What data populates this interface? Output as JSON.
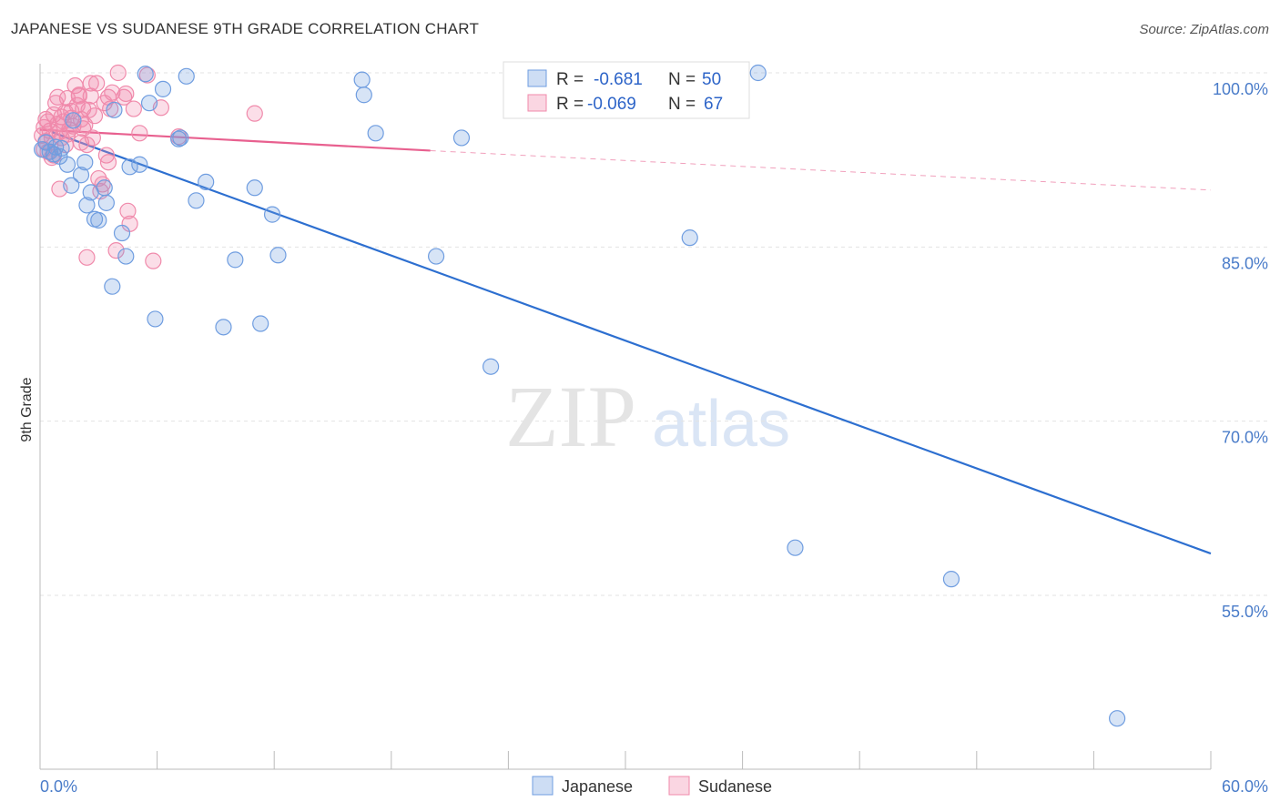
{
  "title": "JAPANESE VS SUDANESE 9TH GRADE CORRELATION CHART",
  "source": "Source: ZipAtlas.com",
  "watermark": {
    "zip": "ZIP",
    "atlas": "atlas"
  },
  "colors": {
    "japanese": "#6f9de0",
    "japanese_fill": "rgba(111,157,224,0.28)",
    "japanese_line": "#2d6fd0",
    "sudanese": "#f08aab",
    "sudanese_fill": "rgba(240,138,171,0.28)",
    "sudanese_line": "#e8608f",
    "grid": "#e3e3e3",
    "tick_label": "#4a7cc9"
  },
  "stats_legend": [
    {
      "series": "Japanese",
      "r_label": "R =",
      "r_value": "-0.681",
      "n_label": "N =",
      "n_value": "50"
    },
    {
      "series": "Sudanese",
      "r_label": "R =",
      "r_value": "-0.069",
      "n_label": "N =",
      "n_value": "67"
    }
  ],
  "chart_data": {
    "type": "scatter",
    "title": "JAPANESE VS SUDANESE 9TH GRADE CORRELATION CHART",
    "xlabel": "",
    "ylabel": "9th Grade",
    "xlim": [
      0,
      60
    ],
    "ylim": [
      41.5,
      101
    ],
    "x_tick_labels": [
      "0.0%",
      "60.0%"
    ],
    "y_ticks": [
      100,
      85,
      70,
      55
    ],
    "y_tick_labels": [
      "100.0%",
      "85.0%",
      "70.0%",
      "55.0%"
    ],
    "grid": true,
    "legend_position": "bottom-center",
    "series": [
      {
        "name": "Japanese",
        "points": [
          [
            0.1,
            93.4
          ],
          [
            0.3,
            94.0
          ],
          [
            0.5,
            93.2
          ],
          [
            0.7,
            93.0
          ],
          [
            0.8,
            93.6
          ],
          [
            1.0,
            92.8
          ],
          [
            1.1,
            93.5
          ],
          [
            1.4,
            92.1
          ],
          [
            1.6,
            90.3
          ],
          [
            1.7,
            95.9
          ],
          [
            2.1,
            91.2
          ],
          [
            2.3,
            92.3
          ],
          [
            2.4,
            88.6
          ],
          [
            2.6,
            89.7
          ],
          [
            2.8,
            87.4
          ],
          [
            3.0,
            87.3
          ],
          [
            3.3,
            90.1
          ],
          [
            3.4,
            88.8
          ],
          [
            3.7,
            81.6
          ],
          [
            3.8,
            96.8
          ],
          [
            4.2,
            86.2
          ],
          [
            4.4,
            84.2
          ],
          [
            4.6,
            91.9
          ],
          [
            5.1,
            92.1
          ],
          [
            5.4,
            99.9
          ],
          [
            5.6,
            97.4
          ],
          [
            5.9,
            78.8
          ],
          [
            6.3,
            98.6
          ],
          [
            7.1,
            94.3
          ],
          [
            7.2,
            94.4
          ],
          [
            7.5,
            99.7
          ],
          [
            8.0,
            89.0
          ],
          [
            8.5,
            90.6
          ],
          [
            9.4,
            78.1
          ],
          [
            10.0,
            83.9
          ],
          [
            11.0,
            90.1
          ],
          [
            11.3,
            78.4
          ],
          [
            11.9,
            87.8
          ],
          [
            12.2,
            84.3
          ],
          [
            16.5,
            99.4
          ],
          [
            16.6,
            98.1
          ],
          [
            17.2,
            94.8
          ],
          [
            20.3,
            84.2
          ],
          [
            21.6,
            94.4
          ],
          [
            23.1,
            74.7
          ],
          [
            33.3,
            85.8
          ],
          [
            36.8,
            100.0
          ],
          [
            38.7,
            59.1
          ],
          [
            46.7,
            56.4
          ],
          [
            55.2,
            44.4
          ]
        ],
        "trend": {
          "x": [
            0.6,
            60.0
          ],
          "y": [
            94.9,
            58.6
          ]
        }
      },
      {
        "name": "Sudanese",
        "points": [
          [
            0.1,
            94.6
          ],
          [
            0.2,
            95.3
          ],
          [
            0.3,
            96.0
          ],
          [
            0.3,
            94.1
          ],
          [
            0.4,
            93.2
          ],
          [
            0.5,
            95.0
          ],
          [
            0.6,
            94.4
          ],
          [
            0.7,
            96.4
          ],
          [
            0.7,
            92.9
          ],
          [
            0.8,
            97.4
          ],
          [
            0.9,
            95.6
          ],
          [
            1.0,
            94.9
          ],
          [
            1.0,
            90.0
          ],
          [
            1.1,
            96.2
          ],
          [
            1.2,
            95.8
          ],
          [
            1.3,
            93.8
          ],
          [
            1.4,
            97.8
          ],
          [
            1.4,
            94.7
          ],
          [
            1.5,
            95.1
          ],
          [
            1.6,
            96.1
          ],
          [
            1.7,
            95.4
          ],
          [
            1.8,
            98.9
          ],
          [
            1.9,
            97.2
          ],
          [
            2.0,
            98.0
          ],
          [
            2.1,
            94.0
          ],
          [
            2.1,
            96.0
          ],
          [
            2.2,
            96.9
          ],
          [
            2.3,
            95.5
          ],
          [
            2.4,
            84.1
          ],
          [
            2.4,
            93.8
          ],
          [
            2.5,
            96.8
          ],
          [
            2.6,
            98.0
          ],
          [
            2.7,
            94.4
          ],
          [
            2.8,
            96.3
          ],
          [
            2.9,
            99.1
          ],
          [
            3.0,
            90.9
          ],
          [
            3.1,
            89.8
          ],
          [
            3.2,
            90.4
          ],
          [
            3.3,
            97.4
          ],
          [
            3.4,
            92.9
          ],
          [
            3.5,
            92.3
          ],
          [
            3.6,
            96.9
          ],
          [
            3.7,
            98.3
          ],
          [
            3.9,
            84.7
          ],
          [
            4.0,
            100.0
          ],
          [
            4.3,
            97.9
          ],
          [
            4.4,
            98.2
          ],
          [
            4.5,
            88.1
          ],
          [
            4.6,
            87.0
          ],
          [
            4.8,
            96.9
          ],
          [
            5.1,
            94.8
          ],
          [
            5.5,
            99.8
          ],
          [
            5.8,
            83.8
          ],
          [
            6.2,
            97.0
          ],
          [
            7.1,
            94.5
          ],
          [
            11.0,
            96.5
          ],
          [
            0.2,
            93.4
          ],
          [
            0.9,
            97.9
          ],
          [
            1.3,
            96.6
          ],
          [
            2.0,
            98.1
          ],
          [
            2.6,
            99.1
          ],
          [
            0.4,
            95.8
          ],
          [
            1.1,
            94.4
          ],
          [
            1.6,
            96.7
          ],
          [
            2.2,
            95.2
          ],
          [
            3.5,
            97.9
          ],
          [
            0.6,
            92.7
          ]
        ],
        "trend": {
          "x": [
            0.0,
            20.0
          ],
          "y": [
            95.1,
            93.3
          ]
        },
        "trend_extension": {
          "x": [
            20.0,
            60.0
          ],
          "y": [
            93.3,
            89.9
          ]
        }
      }
    ]
  }
}
